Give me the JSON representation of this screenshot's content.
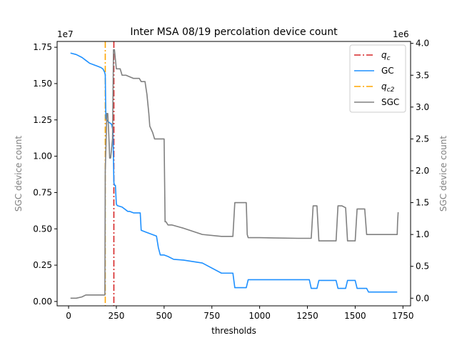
{
  "chart_data": {
    "type": "line",
    "title": "Inter MSA 08/19 percolation device count",
    "xlabel": "thresholds",
    "ylabel_left": "SGC device count",
    "ylabel_right": "SGC device count",
    "xlim": [
      -60,
      1790
    ],
    "ylim_left": [
      -0.03,
      1.79
    ],
    "ylim_right": [
      -0.12,
      4.03
    ],
    "offset_left": "1e7",
    "offset_right": "1e6",
    "x_ticks": [
      0,
      250,
      500,
      750,
      1000,
      1250,
      1500,
      1750
    ],
    "y_ticks_left": [
      0.0,
      0.25,
      0.5,
      0.75,
      1.0,
      1.25,
      1.5,
      1.75
    ],
    "y_ticks_right": [
      0.0,
      0.5,
      1.0,
      1.5,
      2.0,
      2.5,
      3.0,
      3.5,
      4.0
    ],
    "legend_position": "top-right",
    "colors": {
      "qc": "#d62728",
      "gc": "#1e90ff",
      "qc2": "#ffa500",
      "sgc": "#808080",
      "right_axis_label": "#808080",
      "left_axis_label": "#808080"
    },
    "vlines": [
      {
        "name": "q_c",
        "x": 237,
        "style": "dashdot",
        "color": "#d62728"
      },
      {
        "name": "q_c2",
        "x": 192,
        "style": "dashdot",
        "color": "#ffa500"
      }
    ],
    "legend": [
      {
        "key": "qc",
        "main": "q",
        "sub": "c",
        "style": "dashdot",
        "color": "#d62728"
      },
      {
        "key": "gc",
        "main": "GC",
        "sub": "",
        "style": "solid",
        "color": "#1e90ff"
      },
      {
        "key": "qc2",
        "main": "q",
        "sub": "c2",
        "style": "dashdot",
        "color": "#ffa500"
      },
      {
        "key": "sgc",
        "main": "SGC",
        "sub": "",
        "style": "solid",
        "color": "#808080"
      }
    ],
    "series": [
      {
        "name": "GC",
        "axis": "left",
        "x": [
          10,
          40,
          70,
          90,
          110,
          130,
          150,
          170,
          180,
          188,
          192,
          195,
          200,
          205,
          215,
          225,
          232,
          237,
          240,
          245,
          250,
          255,
          280,
          300,
          310,
          320,
          340,
          360,
          375,
          380,
          400,
          420,
          440,
          460,
          470,
          480,
          500,
          520,
          550,
          600,
          700,
          800,
          860,
          870,
          930,
          940,
          1000,
          1100,
          1200,
          1260,
          1270,
          1300,
          1310,
          1400,
          1410,
          1450,
          1460,
          1500,
          1510,
          1560,
          1570,
          1600,
          1720
        ],
        "y": [
          1.71,
          1.7,
          1.68,
          1.66,
          1.64,
          1.63,
          1.62,
          1.61,
          1.6,
          1.58,
          1.56,
          1.26,
          1.25,
          1.24,
          1.23,
          1.22,
          1.18,
          0.82,
          0.8,
          0.8,
          0.67,
          0.66,
          0.65,
          0.63,
          0.62,
          0.62,
          0.61,
          0.61,
          0.61,
          0.49,
          0.48,
          0.47,
          0.46,
          0.45,
          0.37,
          0.32,
          0.32,
          0.31,
          0.29,
          0.285,
          0.265,
          0.195,
          0.195,
          0.095,
          0.095,
          0.15,
          0.15,
          0.15,
          0.15,
          0.15,
          0.09,
          0.09,
          0.145,
          0.145,
          0.09,
          0.09,
          0.145,
          0.145,
          0.09,
          0.09,
          0.065,
          0.065,
          0.065
        ]
      },
      {
        "name": "SGC",
        "axis": "right",
        "x": [
          10,
          40,
          70,
          90,
          110,
          150,
          170,
          185,
          190,
          192,
          200,
          205,
          210,
          215,
          220,
          230,
          235,
          240,
          250,
          270,
          280,
          300,
          340,
          370,
          380,
          400,
          410,
          420,
          425,
          440,
          450,
          470,
          480,
          500,
          505,
          510,
          520,
          540,
          600,
          700,
          800,
          860,
          870,
          930,
          935,
          940,
          1000,
          1200,
          1270,
          1280,
          1300,
          1310,
          1400,
          1410,
          1430,
          1450,
          1460,
          1500,
          1510,
          1550,
          1560,
          1720,
          1722,
          1725
        ],
        "y": [
          0.0,
          0.0,
          0.02,
          0.05,
          0.05,
          0.05,
          0.05,
          0.05,
          0.05,
          2.0,
          2.9,
          2.9,
          2.6,
          2.2,
          2.2,
          2.5,
          3.9,
          3.9,
          3.6,
          3.6,
          3.5,
          3.5,
          3.45,
          3.45,
          3.4,
          3.4,
          3.2,
          2.9,
          2.7,
          2.6,
          2.5,
          2.5,
          2.5,
          2.5,
          1.2,
          1.2,
          1.15,
          1.15,
          1.1,
          1.0,
          0.97,
          0.97,
          1.5,
          1.5,
          1.0,
          0.95,
          0.95,
          0.94,
          0.94,
          1.45,
          1.45,
          0.9,
          0.9,
          1.45,
          1.45,
          1.42,
          0.9,
          0.9,
          1.4,
          1.4,
          1.0,
          1.0,
          1.2,
          1.35
        ]
      }
    ]
  }
}
